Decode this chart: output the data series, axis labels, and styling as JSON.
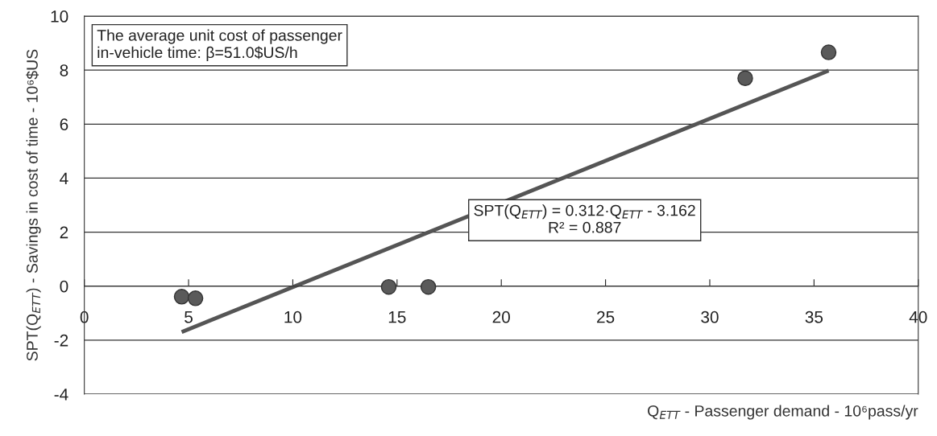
{
  "chart_data": {
    "type": "scatter",
    "xlabel": "Q$_{ETT}$ - Passenger demand - 10⁶pass/yr",
    "ylabel": "SPT(Q$_{ETT}$) - Savings in cost of time - 10⁶$US",
    "series": [
      {
        "color": "#5a5a5a",
        "marker": "circle",
        "x": [
          4.67,
          5.33,
          14.6,
          16.5,
          31.7,
          35.7
        ],
        "values": [
          -0.39,
          -0.45,
          -0.03,
          -0.03,
          7.7,
          8.66
        ]
      },
      {
        "type": "line",
        "color": "#555555",
        "marker": "none",
        "line_style": "solid",
        "x": [
          4.67,
          35.7
        ],
        "values": [
          -1.7,
          7.98
        ]
      }
    ],
    "xlim": [
      0,
      40
    ],
    "xticks": [
      0,
      5,
      10,
      15,
      20,
      25,
      30,
      35,
      40
    ],
    "ylim": [
      -4,
      10
    ],
    "yticks": [
      -4,
      -2,
      0,
      2,
      4,
      6,
      8,
      10
    ],
    "grid": "y",
    "annotations": [
      "The average unit cost of passenger\nin-vehicle time: β=51.0$US/h",
      "SPT(Q$_{ETT}$) = 0.312·Q$_{ETT}$ - 3.162\nR² = 0.887"
    ]
  }
}
